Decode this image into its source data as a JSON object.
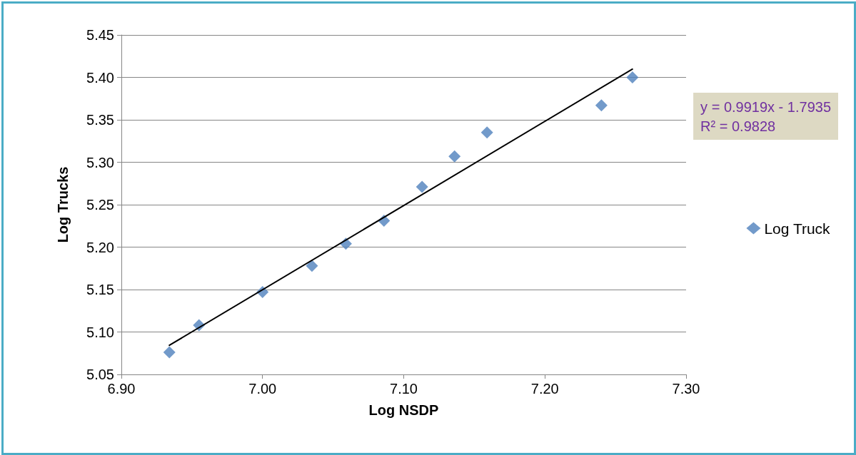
{
  "chart_data": {
    "type": "scatter",
    "xlabel": "Log NSDP",
    "ylabel": "Log Trucks",
    "x": [
      6.934,
      6.955,
      7.0,
      7.035,
      7.059,
      7.086,
      7.113,
      7.136,
      7.159,
      7.24,
      7.262
    ],
    "series": [
      {
        "name": "Log Truck",
        "color": "#4f81bd",
        "values": [
          5.076,
          5.108,
          5.147,
          5.178,
          5.204,
          5.231,
          5.271,
          5.307,
          5.335,
          5.367,
          5.4
        ]
      },
      {
        "type": "line",
        "color": "#000000",
        "x": [
          6.934,
          7.262
        ],
        "values": [
          5.0843,
          5.4097
        ],
        "marker": "none"
      }
    ],
    "annotations": [
      "y = 0.9919x - 1.7935",
      "R² = 0.9828"
    ],
    "xlim": [
      6.9,
      7.3
    ],
    "xticks": [
      {
        "value": 6.9,
        "label": "6.90"
      },
      {
        "value": 7.0,
        "label": "7.00"
      },
      {
        "value": 7.1,
        "label": "7.10"
      },
      {
        "value": 7.2,
        "label": "7.20"
      },
      {
        "value": 7.3,
        "label": "7.30"
      }
    ],
    "ylim": [
      5.05,
      5.45
    ],
    "yticks": [
      {
        "value": 5.05,
        "label": "5.05"
      },
      {
        "value": 5.1,
        "label": "5.10"
      },
      {
        "value": 5.15,
        "label": "5.15"
      },
      {
        "value": 5.2,
        "label": "5.20"
      },
      {
        "value": 5.25,
        "label": "5.25"
      },
      {
        "value": 5.3,
        "label": "5.30"
      },
      {
        "value": 5.35,
        "label": "5.35"
      },
      {
        "value": 5.4,
        "label": "5.40"
      },
      {
        "value": 5.45,
        "label": "5.45"
      }
    ],
    "grid": "y",
    "legend": "right",
    "marker": "diamond"
  }
}
